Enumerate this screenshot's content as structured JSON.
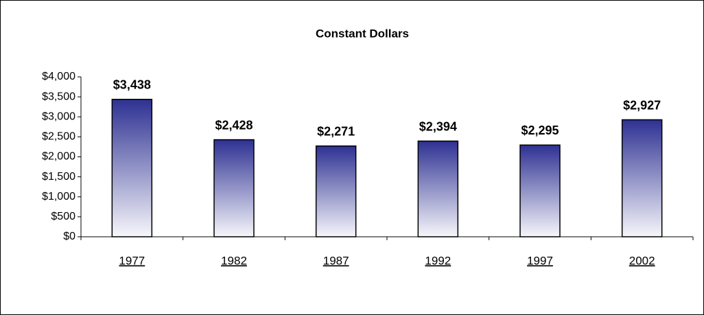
{
  "chart_data": {
    "type": "bar",
    "title": "Constant Dollars",
    "categories": [
      "1977",
      "1982",
      "1987",
      "1992",
      "1997",
      "2002"
    ],
    "values": [
      3438,
      2428,
      2271,
      2394,
      2295,
      2927
    ],
    "value_labels": [
      "$3,438",
      "$2,428",
      "$2,271",
      "$2,394",
      "$2,295",
      "$2,927"
    ],
    "color": "#2e3192",
    "ylim": [
      0,
      4000
    ],
    "yticks": [
      {
        "value": 0,
        "label": "$0"
      },
      {
        "value": 500,
        "label": "$500"
      },
      {
        "value": 1000,
        "label": "$1,000"
      },
      {
        "value": 1500,
        "label": "$1,500"
      },
      {
        "value": 2000,
        "label": "$2,000"
      },
      {
        "value": 2500,
        "label": "$2,500"
      },
      {
        "value": 3000,
        "label": "$3,000"
      },
      {
        "value": 3500,
        "label": "$3,500"
      },
      {
        "value": 4000,
        "label": "$4,000"
      }
    ],
    "grid": false
  }
}
